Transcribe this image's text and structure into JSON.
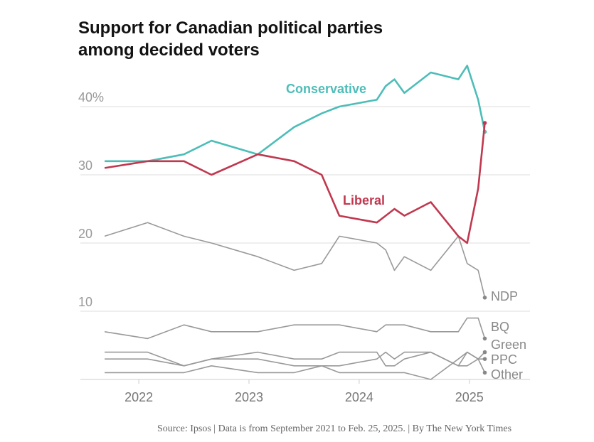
{
  "chart_data": {
    "type": "line",
    "title": "Support for Canadian political parties among decided voters",
    "source": "Source: Ipsos | Data is from September 2021 to Feb. 25, 2025. | By The New York Times",
    "x": [
      2021.69,
      2022.08,
      2022.41,
      2022.66,
      2023.08,
      2023.41,
      2023.66,
      2023.82,
      2024.16,
      2024.24,
      2024.32,
      2024.41,
      2024.65,
      2024.9,
      2024.98,
      2025.08,
      2025.14
    ],
    "xlim": [
      2021.47,
      2025.55
    ],
    "xticks": [
      2022,
      2023,
      2024,
      2025
    ],
    "ylim": [
      0,
      48
    ],
    "yticks": [
      {
        "value": 40,
        "label": "40%"
      },
      30,
      20,
      10
    ],
    "grid": true,
    "series": [
      {
        "name": "Conservative",
        "color": "#4dbdb8",
        "values": [
          32,
          32,
          33,
          35,
          33,
          37,
          39,
          40,
          41,
          43,
          44,
          42,
          45,
          44,
          46,
          41,
          36.3
        ]
      },
      {
        "name": "Liberal",
        "color": "#c0384f",
        "values": [
          31,
          32,
          32,
          30,
          33,
          32,
          30,
          24,
          23,
          24,
          25,
          24,
          26,
          21,
          20,
          28,
          37.6
        ]
      },
      {
        "name": "NDP",
        "color": "#999999",
        "values": [
          21,
          23,
          21,
          20,
          18,
          16,
          17,
          21,
          20,
          19,
          16,
          18,
          16,
          21,
          17,
          16,
          12
        ]
      },
      {
        "name": "BQ",
        "color": "#999999",
        "values": [
          7,
          6,
          8,
          7,
          7,
          8,
          8,
          8,
          7,
          8,
          8,
          8,
          7,
          7,
          9,
          9,
          6
        ]
      },
      {
        "name": "Green",
        "color": "#999999",
        "values": [
          4,
          4,
          2,
          3,
          4,
          3,
          3,
          4,
          4,
          2,
          2,
          3,
          4,
          2,
          2,
          3,
          4
        ]
      },
      {
        "name": "PPC",
        "color": "#999999",
        "values": [
          3,
          3,
          2,
          3,
          3,
          2,
          2,
          2,
          3,
          4,
          3,
          4,
          4,
          2,
          4,
          3,
          3
        ]
      },
      {
        "name": "Other",
        "color": "#999999",
        "values": [
          1,
          1,
          1,
          2,
          1,
          1,
          2,
          1,
          1,
          1,
          1,
          1,
          0,
          3,
          4,
          3,
          1
        ]
      }
    ]
  }
}
